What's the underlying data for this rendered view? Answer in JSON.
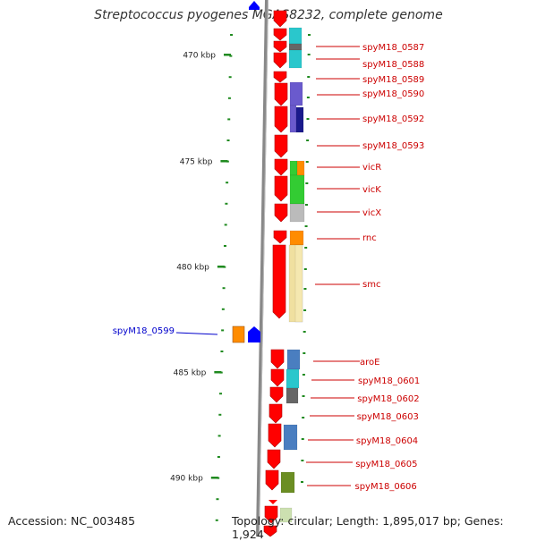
{
  "title": "Streptococcus pyogenes MGAS8232, complete genome",
  "footer": {
    "accession": "Accession: NC_003485",
    "topology": "Topology: circular; Length: 1,895,017 bp; Genes: 1,924"
  },
  "scale_labels": [
    "470 kbp",
    "475 kbp",
    "480 kbp",
    "485 kbp",
    "490 kbp"
  ],
  "genes_right": [
    "spyM18_0587",
    "spyM18_0588",
    "spyM18_0589",
    "spyM18_0590",
    "spyM18_0592",
    "spyM18_0593",
    "vicR",
    "vicK",
    "vicX",
    "rnc",
    "smc",
    "aroE",
    "spyM18_0601",
    "spyM18_0602",
    "spyM18_0603",
    "spyM18_0604",
    "spyM18_0605",
    "spyM18_0606"
  ],
  "genes_left": [
    "spyM18_0599"
  ],
  "colors": {
    "forward_gene": "#ff0000",
    "reverse_gene": "#0000ff",
    "label_right": "#cc0000",
    "label_left": "#0000cc",
    "tick": "#1f8a1f",
    "backbone": "#888888"
  }
}
